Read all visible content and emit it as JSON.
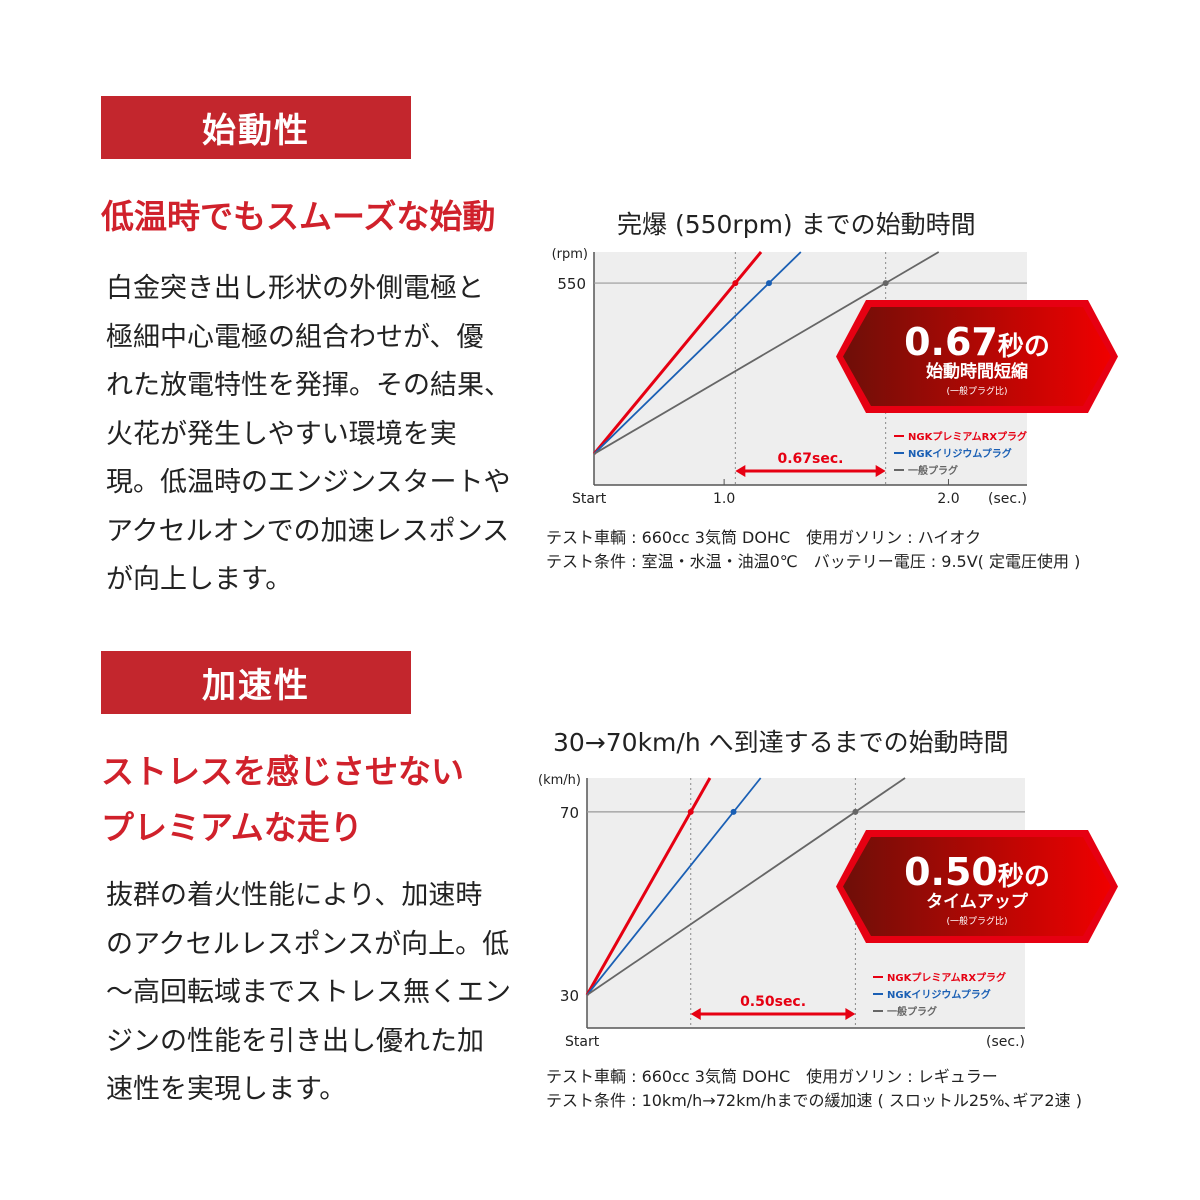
{
  "sections": [
    {
      "header": "始動性",
      "subtitle": "低温時でもスムーズな始動",
      "body": "白金突き出し形状の外側電極と\n極細中心電極の組合わせが、優\nれた放電特性を発揮。その結果、\n火花が発生しやすい環境を実\n現。低温時のエンジンスタートや\nアクセルオンでの加速レスポンス\nが向上します。"
    },
    {
      "header": "加速性",
      "subtitle": "ストレスを感じさせない\nプレミアムな走り",
      "body": "抜群の着火性能により、加速時\nのアクセルレスポンスが向上。低\n〜高回転域までストレス無くエン\nジンの性能を引き出し優れた加\n速性を実現します。"
    }
  ],
  "colors": {
    "accent": "#c3262d",
    "premium": "#e60012",
    "iridium": "#1a5fb4",
    "standard": "#666666",
    "plot_bg": "#eeeeee"
  },
  "chart_data": [
    {
      "type": "line",
      "title": "完爆 (550rpm) までの始動時間",
      "ylabel": "(rpm)",
      "xlabel": "(sec.)",
      "x_start_label": "Start",
      "xticks": [
        1.0,
        2.0
      ],
      "xtick_labels": [
        "1.0",
        "2.0"
      ],
      "yticks": [
        550
      ],
      "ytick_labels": [
        "550"
      ],
      "xlim": [
        0.42,
        2.35
      ],
      "ylim": [
        -100,
        650
      ],
      "grid": false,
      "series": [
        {
          "name": "NGKプレミアムRXプラグ",
          "color": "#e60012",
          "points": [
            [
              0.42,
              0
            ],
            [
              1.05,
              550
            ]
          ]
        },
        {
          "name": "NGKイリジウムプラグ",
          "color": "#1a5fb4",
          "points": [
            [
              0.42,
              0
            ],
            [
              1.2,
              550
            ]
          ]
        },
        {
          "name": "一般プラグ",
          "color": "#666666",
          "points": [
            [
              0.42,
              0
            ],
            [
              1.72,
              550
            ]
          ]
        }
      ],
      "annotation": "0.67sec.",
      "legend": "bottom-right",
      "badge": {
        "value": "0.67",
        "unit": "秒の",
        "line2": "始動時間短縮",
        "line3": "(一般プラグ比)"
      },
      "captions": [
        "テスト車輌 : 660cc 3気筒 DOHC　使用ガソリン : ハイオク",
        "テスト条件 : 室温・水温・油温0℃　バッテリー電圧 : 9.5V( 定電圧使用 )"
      ]
    },
    {
      "type": "line",
      "title": "30→70km/h へ到達するまでの始動時間",
      "ylabel": "(km/h)",
      "xlabel": "(sec.)",
      "x_start_label": "Start",
      "xticks": [],
      "xtick_labels": [],
      "yticks": [
        30,
        70
      ],
      "ytick_labels": [
        "30",
        "70"
      ],
      "xlim": [
        0,
        1.33
      ],
      "ylim": [
        22.8,
        77.4
      ],
      "grid": false,
      "series": [
        {
          "name": "NGKプレミアムRXプラグ",
          "color": "#e60012",
          "points": [
            [
              0,
              30
            ],
            [
              0.315,
              70
            ]
          ]
        },
        {
          "name": "NGKイリジウムプラグ",
          "color": "#1a5fb4",
          "points": [
            [
              0,
              30
            ],
            [
              0.445,
              70
            ]
          ]
        },
        {
          "name": "一般プラグ",
          "color": "#666666",
          "points": [
            [
              0,
              30
            ],
            [
              0.815,
              70
            ]
          ]
        }
      ],
      "annotation": "0.50sec.",
      "legend": "bottom-right",
      "badge": {
        "value": "0.50",
        "unit": "秒の",
        "line2": "タイムアップ",
        "line3": "(一般プラグ比)"
      },
      "captions": [
        "テスト車輌 : 660cc 3気筒 DOHC　使用ガソリン : レギュラー",
        "テスト条件 : 10km/h→72km/hまでの緩加速 ( スロットル25%､ギア2速 )"
      ]
    }
  ]
}
